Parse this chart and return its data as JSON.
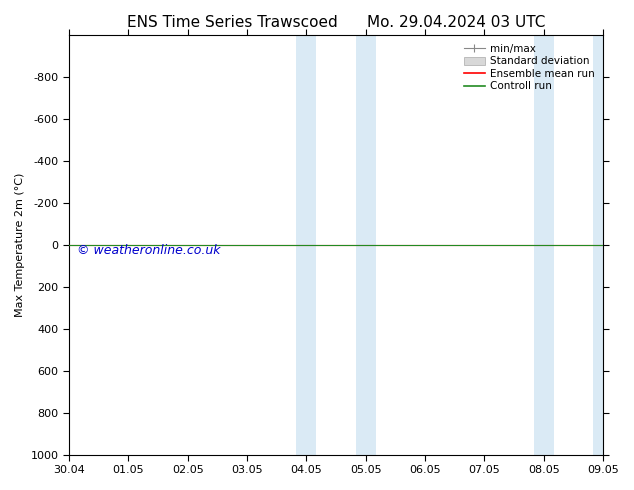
{
  "title_left": "ENS Time Series Trawscoed",
  "title_right": "Mo. 29.04.2024 03 UTC",
  "ylabel": "Max Temperature 2m (°C)",
  "xlim_dates": [
    "30.04",
    "01.05",
    "02.05",
    "03.05",
    "04.05",
    "05.05",
    "06.05",
    "07.05",
    "08.05",
    "09.05"
  ],
  "xlim": [
    0,
    9
  ],
  "ylim_bottom": 1000,
  "ylim_top": -1000,
  "yticks": [
    -800,
    -600,
    -400,
    -200,
    0,
    200,
    400,
    600,
    800,
    1000
  ],
  "shaded_regions": [
    [
      3.83,
      4.17
    ],
    [
      4.83,
      5.17
    ],
    [
      7.83,
      8.17
    ],
    [
      8.83,
      9.17
    ]
  ],
  "shaded_color": "#daeaf5",
  "shaded_alpha": 1.0,
  "control_run_y": 0,
  "control_run_color": "#228B22",
  "ensemble_mean_color": "#ff0000",
  "minmax_color": "#888888",
  "stddev_color": "#cccccc",
  "watermark_text": "© weatheronline.co.uk",
  "watermark_color": "#0000cc",
  "watermark_fontsize": 9,
  "bg_color": "#ffffff",
  "legend_entries": [
    "min/max",
    "Standard deviation",
    "Ensemble mean run",
    "Controll run"
  ],
  "legend_colors": [
    "#888888",
    "#cccccc",
    "#ff0000",
    "#228B22"
  ],
  "title_fontsize": 11,
  "axis_fontsize": 8,
  "tick_fontsize": 8
}
